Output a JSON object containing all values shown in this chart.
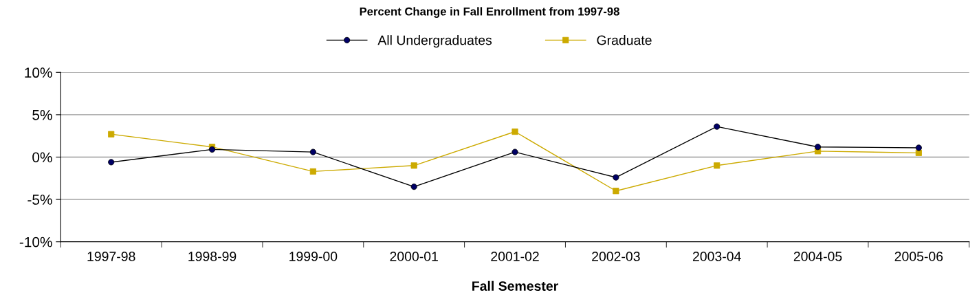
{
  "chart_data": {
    "type": "line",
    "title": "Percent Change in Fall Enrollment from 1997-98",
    "xlabel": "Fall Semester",
    "categories": [
      "1997-98",
      "1998-99",
      "1999-00",
      "2000-01",
      "2001-02",
      "2002-03",
      "2003-04",
      "2004-05",
      "2005-06"
    ],
    "series": [
      {
        "name": "All Undergraduates",
        "color": "#000066",
        "marker": "circle",
        "values": [
          -0.6,
          0.9,
          0.6,
          -3.5,
          0.6,
          -2.4,
          3.6,
          1.2,
          1.1
        ]
      },
      {
        "name": "Graduate",
        "color": "#ccaa00",
        "marker": "square",
        "values": [
          2.7,
          1.2,
          -1.7,
          -1.0,
          3.0,
          -4.0,
          -1.0,
          0.7,
          0.5
        ]
      }
    ],
    "ylim": [
      -10,
      10
    ],
    "yticks": [
      {
        "value": -10,
        "label": "-10%"
      },
      {
        "value": -5,
        "label": "-5%"
      },
      {
        "value": 0,
        "label": "0%"
      },
      {
        "value": 5,
        "label": "5%"
      },
      {
        "value": 10,
        "label": "10%"
      }
    ],
    "grid": "y",
    "legend": "top"
  }
}
